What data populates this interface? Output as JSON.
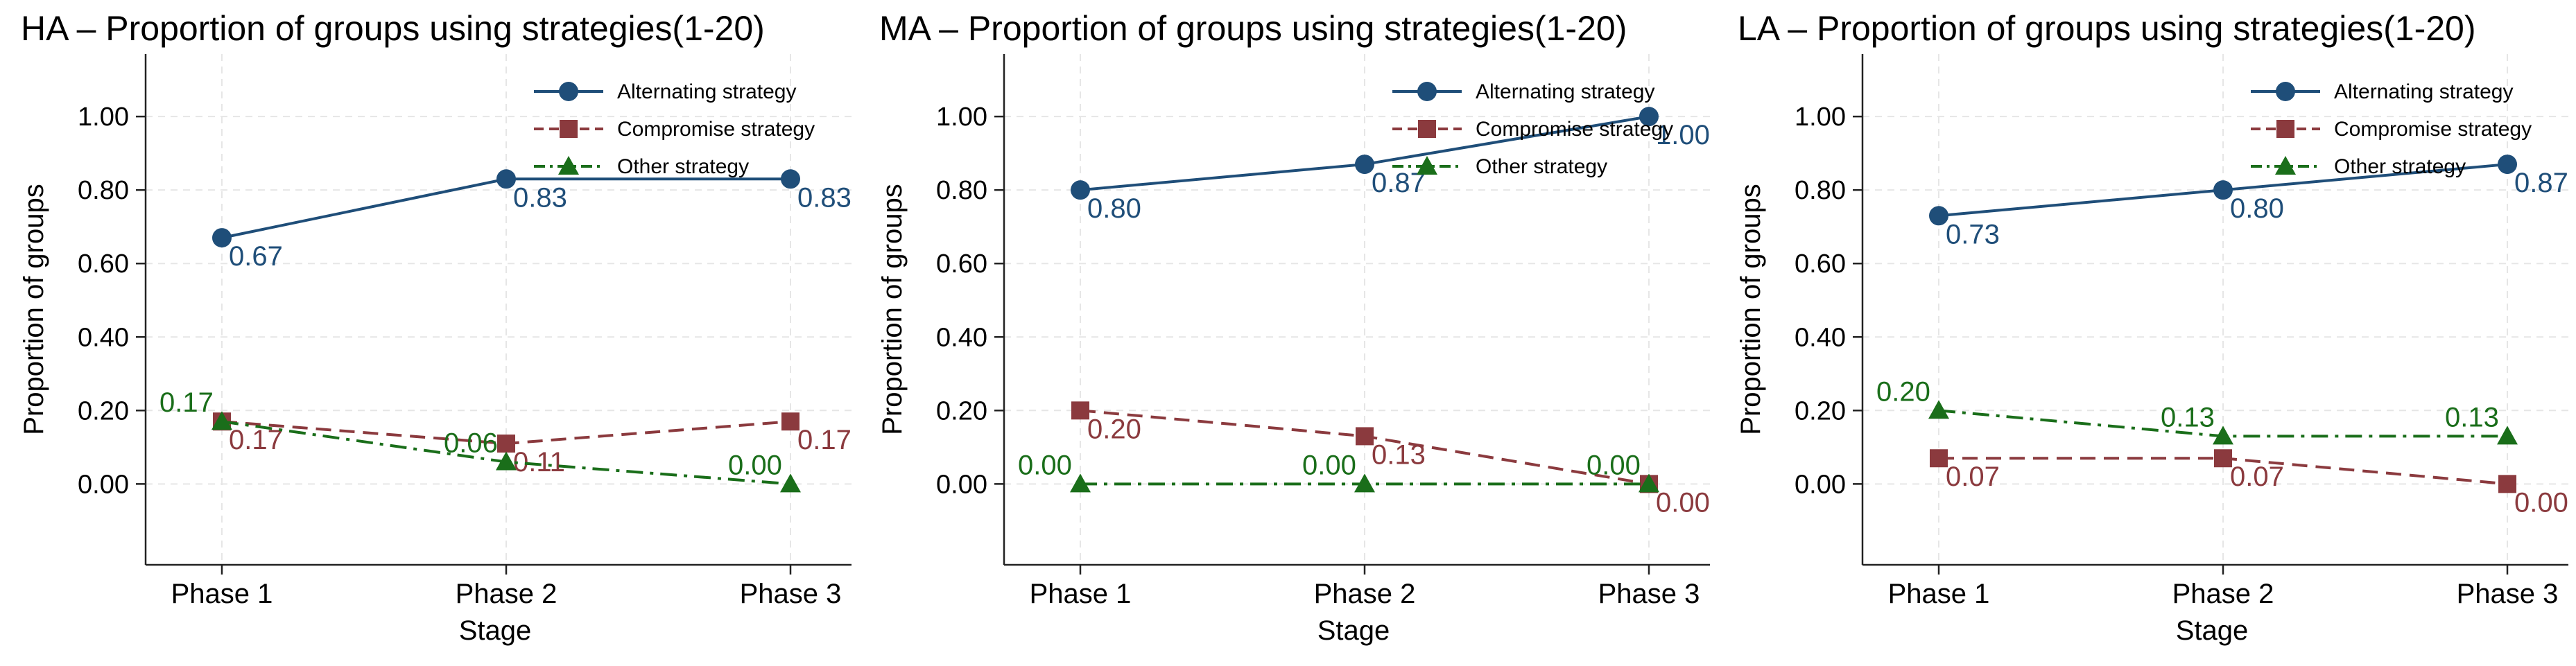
{
  "colors": {
    "alternating": "#1f4e79",
    "compromise": "#8b3a3e",
    "other": "#1a6e1a",
    "grid": "#e6e6e6",
    "axis": "#222222"
  },
  "chart_data": [
    {
      "type": "line",
      "title": "HA – Proportion of groups using strategies(1-20)",
      "xlabel": "Stage",
      "ylabel": "Proportion of groups",
      "categories": [
        "Phase 1",
        "Phase 2",
        "Phase 3"
      ],
      "ylim": [
        -0.22,
        1.17
      ],
      "yticks": [
        "0.00",
        "0.20",
        "0.40",
        "0.60",
        "0.80",
        "1.00"
      ],
      "legend_position": "top-right",
      "series": [
        {
          "name": "Alternating strategy",
          "key": "alternating",
          "marker": "circle",
          "dash": "solid",
          "values": [
            0.67,
            0.83,
            0.83
          ],
          "labels": [
            "0.67",
            "0.83",
            "0.83"
          ]
        },
        {
          "name": "Compromise strategy",
          "key": "compromise",
          "marker": "square",
          "dash": "dashed",
          "values": [
            0.17,
            0.11,
            0.17
          ],
          "labels": [
            "0.17",
            "0.11",
            "0.17"
          ]
        },
        {
          "name": "Other strategy",
          "key": "other",
          "marker": "triangle",
          "dash": "dashdot",
          "values": [
            0.17,
            0.06,
            0.0
          ],
          "labels": [
            "0.17",
            "0.06",
            "0.00"
          ]
        }
      ]
    },
    {
      "type": "line",
      "title": "MA – Proportion of groups using strategies(1-20)",
      "xlabel": "Stage",
      "ylabel": "Proportion of groups",
      "categories": [
        "Phase 1",
        "Phase 2",
        "Phase 3"
      ],
      "ylim": [
        -0.22,
        1.17
      ],
      "yticks": [
        "0.00",
        "0.20",
        "0.40",
        "0.60",
        "0.80",
        "1.00"
      ],
      "legend_position": "top-right",
      "series": [
        {
          "name": "Alternating strategy",
          "key": "alternating",
          "marker": "circle",
          "dash": "solid",
          "values": [
            0.8,
            0.87,
            1.0
          ],
          "labels": [
            "0.80",
            "0.87",
            "1.00"
          ]
        },
        {
          "name": "Compromise strategy",
          "key": "compromise",
          "marker": "square",
          "dash": "dashed",
          "values": [
            0.2,
            0.13,
            0.0
          ],
          "labels": [
            "0.20",
            "0.13",
            "0.00"
          ]
        },
        {
          "name": "Other strategy",
          "key": "other",
          "marker": "triangle",
          "dash": "dashdot",
          "values": [
            0.0,
            0.0,
            0.0
          ],
          "labels": [
            "0.00",
            "0.00",
            "0.00"
          ]
        }
      ]
    },
    {
      "type": "line",
      "title": "LA – Proportion of groups using strategies(1-20)",
      "xlabel": "Stage",
      "ylabel": "Proportion of groups",
      "categories": [
        "Phase 1",
        "Phase 2",
        "Phase 3"
      ],
      "ylim": [
        -0.22,
        1.17
      ],
      "yticks": [
        "0.00",
        "0.20",
        "0.40",
        "0.60",
        "0.80",
        "1.00"
      ],
      "legend_position": "top-right",
      "series": [
        {
          "name": "Alternating strategy",
          "key": "alternating",
          "marker": "circle",
          "dash": "solid",
          "values": [
            0.73,
            0.8,
            0.87
          ],
          "labels": [
            "0.73",
            "0.80",
            "0.87"
          ]
        },
        {
          "name": "Compromise strategy",
          "key": "compromise",
          "marker": "square",
          "dash": "dashed",
          "values": [
            0.07,
            0.07,
            0.0
          ],
          "labels": [
            "0.07",
            "0.07",
            "0.00"
          ]
        },
        {
          "name": "Other strategy",
          "key": "other",
          "marker": "triangle",
          "dash": "dashdot",
          "values": [
            0.2,
            0.13,
            0.13
          ],
          "labels": [
            "0.20",
            "0.13",
            "0.13"
          ]
        }
      ]
    }
  ]
}
